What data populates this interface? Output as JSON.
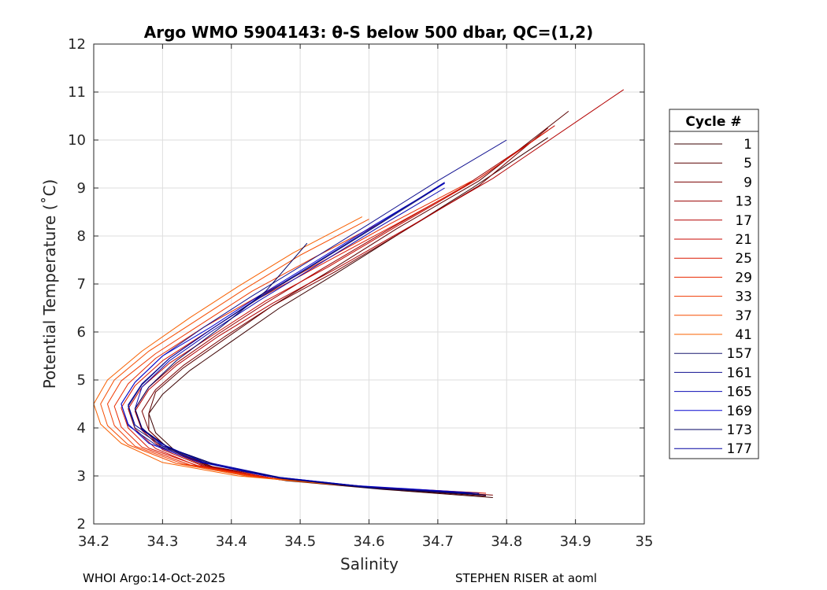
{
  "chart_data": {
    "type": "line",
    "title": "Argo WMO 5904143: θ-S below 500 dbar,  QC=(1,2)",
    "xlabel": "Salinity",
    "ylabel": "Potential Temperature (˚C)",
    "xlim": [
      34.2,
      35.0
    ],
    "ylim": [
      2,
      12
    ],
    "xticks": [
      "34.2",
      "34.3",
      "34.4",
      "34.5",
      "34.6",
      "34.7",
      "34.8",
      "34.9",
      "35"
    ],
    "yticks": [
      "2",
      "3",
      "4",
      "5",
      "6",
      "7",
      "8",
      "9",
      "10",
      "11",
      "12"
    ],
    "grid": true,
    "legend": {
      "title": "Cycle #",
      "placement": "outside-right",
      "entries": [
        {
          "label": "1",
          "color": "#3a0000"
        },
        {
          "label": "5",
          "color": "#5a0000"
        },
        {
          "label": "9",
          "color": "#7a0000"
        },
        {
          "label": "13",
          "color": "#990000"
        },
        {
          "label": "17",
          "color": "#b30000"
        },
        {
          "label": "21",
          "color": "#c80a00"
        },
        {
          "label": "25",
          "color": "#db1800"
        },
        {
          "label": "29",
          "color": "#e82a00"
        },
        {
          "label": "33",
          "color": "#f03a00"
        },
        {
          "label": "37",
          "color": "#f54c00"
        },
        {
          "label": "41",
          "color": "#f86000"
        },
        {
          "label": "157",
          "color": "#1a1a70"
        },
        {
          "label": "161",
          "color": "#101090"
        },
        {
          "label": "165",
          "color": "#0b0bb5"
        },
        {
          "label": "169",
          "color": "#0505d0"
        },
        {
          "label": "173",
          "color": "#000060"
        },
        {
          "label": "177",
          "color": "#0000a0"
        }
      ]
    },
    "series": [
      {
        "cycle": 1,
        "color": "#3a0000",
        "x": [
          34.78,
          34.62,
          34.48,
          34.38,
          34.32,
          34.29,
          34.28,
          34.3,
          34.34,
          34.4,
          34.47,
          34.55,
          34.65,
          34.75,
          34.86
        ],
        "y": [
          2.55,
          2.72,
          2.9,
          3.15,
          3.5,
          3.9,
          4.3,
          4.7,
          5.2,
          5.8,
          6.5,
          7.2,
          8.1,
          9.0,
          10.05
        ]
      },
      {
        "cycle": 5,
        "color": "#5a0000",
        "x": [
          34.77,
          34.61,
          34.47,
          34.37,
          34.31,
          34.28,
          34.28,
          34.29,
          34.33,
          34.39,
          34.46,
          34.54,
          34.64,
          34.76,
          34.89
        ],
        "y": [
          2.58,
          2.74,
          2.92,
          3.18,
          3.55,
          3.95,
          4.3,
          4.75,
          5.25,
          5.85,
          6.55,
          7.25,
          8.15,
          9.15,
          10.6
        ]
      },
      {
        "cycle": 9,
        "color": "#7a0000",
        "x": [
          34.78,
          34.62,
          34.48,
          34.37,
          34.31,
          34.28,
          34.27,
          34.29,
          34.33,
          34.39,
          34.46,
          34.55,
          34.65,
          34.76,
          34.86
        ],
        "y": [
          2.6,
          2.75,
          2.93,
          3.2,
          3.55,
          3.95,
          4.35,
          4.8,
          5.3,
          5.9,
          6.55,
          7.25,
          8.1,
          9.05,
          10.25
        ]
      },
      {
        "cycle": 13,
        "color": "#990000",
        "x": [
          34.76,
          34.6,
          34.46,
          34.36,
          34.3,
          34.27,
          34.26,
          34.28,
          34.32,
          34.38,
          34.45,
          34.53,
          34.63,
          34.74,
          34.85
        ],
        "y": [
          2.62,
          2.77,
          2.95,
          3.22,
          3.58,
          4.0,
          4.4,
          4.85,
          5.35,
          5.95,
          6.6,
          7.3,
          8.15,
          9.05,
          10.1
        ]
      },
      {
        "cycle": 17,
        "color": "#b30000",
        "x": [
          34.77,
          34.61,
          34.47,
          34.36,
          34.3,
          34.27,
          34.26,
          34.28,
          34.32,
          34.38,
          34.46,
          34.55,
          34.66,
          34.78,
          34.97
        ],
        "y": [
          2.6,
          2.75,
          2.93,
          3.2,
          3.55,
          3.95,
          4.35,
          4.8,
          5.3,
          5.9,
          6.6,
          7.3,
          8.2,
          9.2,
          11.05
        ]
      },
      {
        "cycle": 21,
        "color": "#c80a00",
        "x": [
          34.76,
          34.6,
          34.46,
          34.35,
          34.29,
          34.26,
          34.25,
          34.27,
          34.31,
          34.38,
          34.45,
          34.54,
          34.64,
          34.76,
          34.87
        ],
        "y": [
          2.62,
          2.76,
          2.94,
          3.21,
          3.57,
          3.98,
          4.4,
          4.85,
          5.35,
          6.0,
          6.65,
          7.35,
          8.2,
          9.2,
          10.3
        ]
      },
      {
        "cycle": 25,
        "color": "#db1800",
        "x": [
          34.77,
          34.6,
          34.46,
          34.35,
          34.28,
          34.25,
          34.24,
          34.26,
          34.3,
          34.37,
          34.44,
          34.53,
          34.64,
          34.76,
          34.86
        ],
        "y": [
          2.64,
          2.77,
          2.95,
          3.22,
          3.58,
          4.0,
          4.42,
          4.88,
          5.4,
          6.05,
          6.7,
          7.4,
          8.25,
          9.2,
          10.2
        ]
      },
      {
        "cycle": 29,
        "color": "#e82a00",
        "x": [
          34.76,
          34.59,
          34.45,
          34.34,
          34.27,
          34.24,
          34.23,
          34.25,
          34.29,
          34.36,
          34.44,
          34.53,
          34.63,
          34.75
        ],
        "y": [
          2.65,
          2.78,
          2.96,
          3.23,
          3.6,
          4.02,
          4.45,
          4.92,
          5.45,
          6.1,
          6.75,
          7.45,
          8.25,
          9.15
        ]
      },
      {
        "cycle": 33,
        "color": "#f03a00",
        "x": [
          34.75,
          34.58,
          34.44,
          34.33,
          34.26,
          34.23,
          34.22,
          34.24,
          34.29,
          34.36,
          34.43,
          34.52,
          34.62
        ],
        "y": [
          2.65,
          2.79,
          2.97,
          3.25,
          3.62,
          4.05,
          4.5,
          4.98,
          5.55,
          6.2,
          6.85,
          7.55,
          8.3
        ]
      },
      {
        "cycle": 37,
        "color": "#f54c00",
        "x": [
          34.74,
          34.57,
          34.43,
          34.32,
          34.25,
          34.22,
          34.21,
          34.23,
          34.28,
          34.35,
          34.42,
          34.5,
          34.6
        ],
        "y": [
          2.66,
          2.8,
          2.98,
          3.26,
          3.65,
          4.05,
          4.5,
          5.0,
          5.6,
          6.25,
          6.9,
          7.6,
          8.35
        ]
      },
      {
        "cycle": 41,
        "color": "#f86000",
        "x": [
          34.72,
          34.55,
          34.41,
          34.3,
          34.24,
          34.21,
          34.2,
          34.22,
          34.27,
          34.34,
          34.41,
          34.49,
          34.59
        ],
        "y": [
          2.67,
          2.82,
          3.0,
          3.28,
          3.68,
          4.08,
          4.5,
          5.0,
          5.6,
          6.3,
          6.95,
          7.65,
          8.4
        ]
      },
      {
        "cycle": 157,
        "color": "#1a1a70",
        "x": [
          34.76,
          34.6,
          34.47,
          34.37,
          34.3,
          34.26,
          34.25,
          34.27,
          34.31,
          34.37,
          34.44,
          34.52,
          34.61,
          34.71
        ],
        "y": [
          2.62,
          2.75,
          2.95,
          3.25,
          3.62,
          4.0,
          4.45,
          4.9,
          5.45,
          6.05,
          6.7,
          7.4,
          8.2,
          9.1
        ]
      },
      {
        "cycle": 161,
        "color": "#101090",
        "x": [
          34.75,
          34.59,
          34.46,
          34.36,
          34.29,
          34.25,
          34.24,
          34.26,
          34.3,
          34.36,
          34.43,
          34.51,
          34.6,
          34.7,
          34.8
        ],
        "y": [
          2.65,
          2.78,
          2.98,
          3.28,
          3.65,
          4.05,
          4.5,
          4.95,
          5.5,
          6.1,
          6.75,
          7.45,
          8.25,
          9.15,
          10.0
        ]
      },
      {
        "cycle": 165,
        "color": "#0b0bb5",
        "x": [
          34.76,
          34.6,
          34.47,
          34.37,
          34.3,
          34.27,
          34.26,
          34.27,
          34.31,
          34.37,
          34.44,
          34.52,
          34.61,
          34.71
        ],
        "y": [
          2.64,
          2.77,
          2.97,
          3.27,
          3.63,
          4.0,
          4.4,
          4.85,
          5.4,
          6.0,
          6.65,
          7.35,
          8.15,
          9.0
        ]
      },
      {
        "cycle": 169,
        "color": "#0505d0",
        "x": [
          34.74,
          34.58,
          34.45,
          34.35,
          34.28,
          34.25,
          34.24,
          34.26,
          34.3,
          34.37,
          34.44,
          34.52,
          34.61,
          34.71
        ],
        "y": [
          2.66,
          2.8,
          3.0,
          3.3,
          3.68,
          4.08,
          4.5,
          4.95,
          5.5,
          6.1,
          6.75,
          7.45,
          8.25,
          9.1
        ]
      },
      {
        "cycle": 173,
        "color": "#000060",
        "x": [
          34.77,
          34.61,
          34.48,
          34.38,
          34.31,
          34.27,
          34.26,
          34.28,
          34.32,
          34.38,
          34.45,
          34.51
        ],
        "y": [
          2.6,
          2.74,
          2.94,
          3.22,
          3.58,
          3.98,
          4.4,
          4.85,
          5.4,
          6.05,
          6.85,
          7.85
        ]
      },
      {
        "cycle": 177,
        "color": "#0000a0",
        "x": [
          34.75,
          34.59,
          34.46,
          34.36,
          34.3,
          34.26,
          34.25,
          34.27,
          34.31,
          34.37,
          34.44,
          34.52,
          34.61,
          34.71
        ],
        "y": [
          2.64,
          2.78,
          2.98,
          3.28,
          3.66,
          4.06,
          4.48,
          4.92,
          5.45,
          6.05,
          6.72,
          7.42,
          8.22,
          9.12
        ]
      }
    ]
  },
  "footer": {
    "left": "WHOI Argo:14-Oct-2025",
    "right": "STEPHEN RISER at aoml"
  }
}
